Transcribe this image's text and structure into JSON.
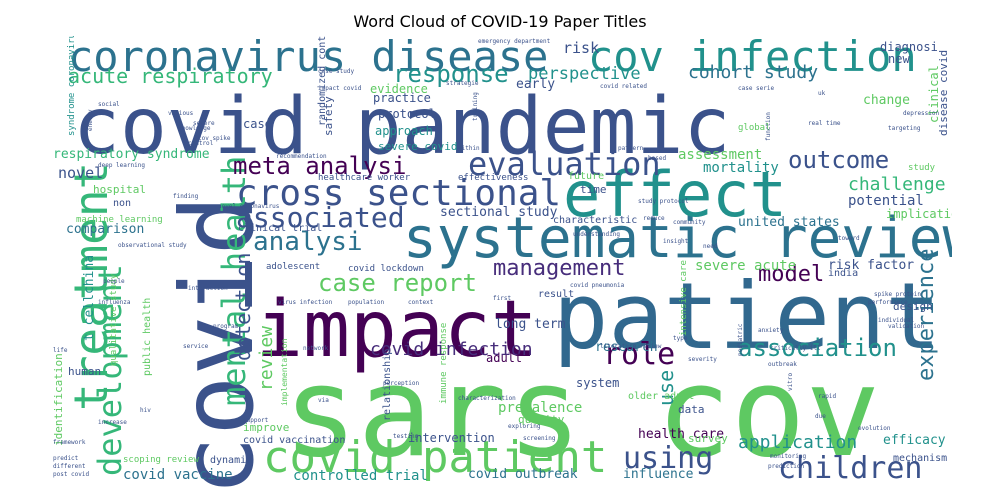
{
  "title": "Word Cloud of COVID-19 Paper Titles",
  "palette": {
    "c1": "#3b528b",
    "c2": "#21918c",
    "c3": "#5ec962",
    "c4": "#440154",
    "c5": "#2c728e",
    "c6": "#35b779",
    "c7": "#472d7b",
    "c8": "#28ae80",
    "c9": "#90d743"
  },
  "words": [
    {
      "text": "covid pandemic",
      "color": "#3b528b"
    },
    {
      "text": "sars cov",
      "color": "#5ec962"
    },
    {
      "text": "patient",
      "color": "#31688e"
    },
    {
      "text": "impact",
      "color": "#440154"
    },
    {
      "text": "covid",
      "color": "#3b528b"
    },
    {
      "text": "systematic review",
      "color": "#2c728e"
    },
    {
      "text": "effect",
      "color": "#21918c"
    },
    {
      "text": "coronavirus disease",
      "color": "#2c728e"
    },
    {
      "text": "cov infection",
      "color": "#21918c"
    },
    {
      "text": "covid patient",
      "color": "#5ec962"
    },
    {
      "text": "treatment",
      "color": "#35b779"
    },
    {
      "text": "cross sectional",
      "color": "#3b528b"
    },
    {
      "text": "mental health",
      "color": "#35b779"
    },
    {
      "text": "evaluation",
      "color": "#3b528b"
    },
    {
      "text": "meta analysi",
      "color": "#440154"
    },
    {
      "text": "associated",
      "color": "#3b528b"
    },
    {
      "text": "development",
      "color": "#35b779"
    },
    {
      "text": "analysi",
      "color": "#2c728e"
    },
    {
      "text": "case report",
      "color": "#5ec962"
    },
    {
      "text": "children",
      "color": "#3b528b"
    },
    {
      "text": "using",
      "color": "#3b528b"
    },
    {
      "text": "role",
      "color": "#440154"
    },
    {
      "text": "association",
      "color": "#21918c"
    },
    {
      "text": "management",
      "color": "#472d7b"
    },
    {
      "text": "outcome",
      "color": "#3b528b"
    },
    {
      "text": "experience",
      "color": "#2c728e"
    },
    {
      "text": "response",
      "color": "#21918c"
    },
    {
      "text": "acute respiratory",
      "color": "#35b779"
    },
    {
      "text": "detection",
      "color": "#3b528b"
    },
    {
      "text": "covid infection",
      "color": "#472d7b"
    },
    {
      "text": "model",
      "color": "#440154"
    },
    {
      "text": "challenge",
      "color": "#35b779"
    },
    {
      "text": "cohort study",
      "color": "#2c728e"
    },
    {
      "text": "application",
      "color": "#21918c"
    },
    {
      "text": "review",
      "color": "#5ec962"
    },
    {
      "text": "perspective",
      "color": "#21918c"
    },
    {
      "text": "use",
      "color": "#21918c"
    },
    {
      "text": "covid vaccine",
      "color": "#2c728e"
    },
    {
      "text": "novel",
      "color": "#3b528b"
    },
    {
      "text": "risk",
      "color": "#3b528b"
    },
    {
      "text": "early",
      "color": "#3b528b"
    },
    {
      "text": "controlled trial",
      "color": "#21918c"
    },
    {
      "text": "covid outbreak",
      "color": "#2c728e"
    },
    {
      "text": "influence",
      "color": "#2c728e"
    },
    {
      "text": "health care",
      "color": "#440154"
    },
    {
      "text": "efficacy",
      "color": "#21918c"
    },
    {
      "text": "comparison",
      "color": "#2c728e"
    },
    {
      "text": "respiratory syndrome",
      "color": "#35b779"
    },
    {
      "text": "sectional study",
      "color": "#3b528b"
    },
    {
      "text": "united states",
      "color": "#2c728e"
    },
    {
      "text": "potential",
      "color": "#3b528b"
    },
    {
      "text": "mortality",
      "color": "#21918c"
    },
    {
      "text": "assessment",
      "color": "#5ec962"
    },
    {
      "text": "implication",
      "color": "#5ec962"
    },
    {
      "text": "risk factor",
      "color": "#3b528b"
    },
    {
      "text": "severe acute",
      "color": "#5ec962"
    },
    {
      "text": "prevalence",
      "color": "#5ec962"
    },
    {
      "text": "research",
      "color": "#2c728e"
    },
    {
      "text": "t cellchina",
      "color": "#21918c"
    },
    {
      "text": "long term",
      "color": "#3b528b"
    },
    {
      "text": "intervention",
      "color": "#3b528b"
    },
    {
      "text": "system",
      "color": "#3b528b"
    },
    {
      "text": "adult",
      "color": "#440154"
    },
    {
      "text": "protocol",
      "color": "#3b528b"
    },
    {
      "text": "practice",
      "color": "#3b528b"
    },
    {
      "text": "approach",
      "color": "#21918c"
    },
    {
      "text": "severe covid",
      "color": "#21918c"
    },
    {
      "text": "case",
      "color": "#3b528b"
    },
    {
      "text": "evidence",
      "color": "#5ec962"
    },
    {
      "text": "safety",
      "color": "#3b528b"
    },
    {
      "text": "change",
      "color": "#5ec962"
    },
    {
      "text": "new",
      "color": "#3b528b"
    },
    {
      "text": "diagnosi",
      "color": "#3b528b"
    },
    {
      "text": "hospital",
      "color": "#5ec962"
    },
    {
      "text": "human",
      "color": "#3b528b"
    },
    {
      "text": "design",
      "color": "#3b528b"
    },
    {
      "text": "mechanism",
      "color": "#3b528b"
    },
    {
      "text": "survey",
      "color": "#5ec962"
    },
    {
      "text": "improve",
      "color": "#5ec962"
    },
    {
      "text": "covid vaccination",
      "color": "#3b528b"
    },
    {
      "text": "dynamic",
      "color": "#3b528b"
    },
    {
      "text": "time",
      "color": "#3b528b"
    },
    {
      "text": "future",
      "color": "#5ec962"
    },
    {
      "text": "characteristic",
      "color": "#3b528b"
    },
    {
      "text": "adolescent",
      "color": "#3b528b"
    },
    {
      "text": "covid lockdown",
      "color": "#3b528b"
    },
    {
      "text": "result",
      "color": "#3b528b"
    },
    {
      "text": "data",
      "color": "#3b528b"
    },
    {
      "text": "older adult",
      "color": "#5ec962"
    },
    {
      "text": "quality",
      "color": "#5ec962"
    },
    {
      "text": "clinical",
      "color": "#5ec962"
    },
    {
      "text": "global",
      "color": "#5ec962"
    },
    {
      "text": "study",
      "color": "#5ec962"
    },
    {
      "text": "identification",
      "color": "#5ec962"
    },
    {
      "text": "non",
      "color": "#3b528b"
    },
    {
      "text": "healthcare worker",
      "color": "#3b528b"
    },
    {
      "text": "effectiveness",
      "color": "#3b528b"
    },
    {
      "text": "clinical trial",
      "color": "#3b528b"
    },
    {
      "text": "india",
      "color": "#3b528b"
    },
    {
      "text": "randomized controlled",
      "color": "#3b528b"
    },
    {
      "text": "disease covid",
      "color": "#3b528b"
    },
    {
      "text": "syndrome coronavirus",
      "color": "#21918c"
    },
    {
      "text": "qualitative study",
      "color": "#5ec962"
    },
    {
      "text": "public health",
      "color": "#5ec962"
    },
    {
      "text": "scoping review",
      "color": "#5ec962"
    },
    {
      "text": "intensive care",
      "color": "#5ec962"
    },
    {
      "text": "relationship",
      "color": "#3b528b"
    },
    {
      "text": "machine learning",
      "color": "#5ec962"
    },
    {
      "text": "implementation",
      "color": "#5ec962"
    },
    {
      "text": "immune response",
      "color": "#5ec962"
    },
    {
      "text": "emergency department",
      "color": "#3b528b"
    },
    {
      "text": "case study",
      "color": "#3b528b"
    },
    {
      "text": "impact covid",
      "color": "#3b528b"
    },
    {
      "text": "strategie",
      "color": "#3b528b"
    },
    {
      "text": "covid related",
      "color": "#3b528b"
    },
    {
      "text": "case serie",
      "color": "#3b528b"
    },
    {
      "text": "social",
      "color": "#3b528b"
    },
    {
      "text": "control",
      "color": "#3b528b"
    },
    {
      "text": "knowledge",
      "color": "#3b528b"
    },
    {
      "text": "severe",
      "color": "#3b528b"
    },
    {
      "text": "various",
      "color": "#3b528b"
    },
    {
      "text": "deep learning",
      "color": "#3b528b"
    },
    {
      "text": "real time",
      "color": "#3b528b"
    },
    {
      "text": "depression",
      "color": "#3b528b"
    },
    {
      "text": "targeting",
      "color": "#3b528b"
    },
    {
      "text": "finding",
      "color": "#3b528b"
    },
    {
      "text": "critically ill",
      "color": "#3b528b"
    },
    {
      "text": "outbreak",
      "color": "#3b528b"
    },
    {
      "text": "covid pneumonia",
      "color": "#3b528b"
    },
    {
      "text": "interaction",
      "color": "#3b528b"
    },
    {
      "text": "virus infection",
      "color": "#3b528b"
    },
    {
      "text": "population",
      "color": "#3b528b"
    },
    {
      "text": "context",
      "color": "#3b528b"
    },
    {
      "text": "literature review",
      "color": "#3b528b"
    },
    {
      "text": "severity",
      "color": "#3b528b"
    },
    {
      "text": "anxiety",
      "color": "#3b528b"
    },
    {
      "text": "rapid",
      "color": "#3b528b"
    },
    {
      "text": "evolution",
      "color": "#3b528b"
    },
    {
      "text": "prediction",
      "color": "#3b528b"
    },
    {
      "text": "monitoring",
      "color": "#3b528b"
    },
    {
      "text": "screening",
      "color": "#3b528b"
    },
    {
      "text": "exploring",
      "color": "#3b528b"
    },
    {
      "text": "perception",
      "color": "#3b528b"
    },
    {
      "text": "characterization",
      "color": "#3b528b"
    },
    {
      "text": "framework",
      "color": "#3b528b"
    },
    {
      "text": "predict",
      "color": "#3b528b"
    },
    {
      "text": "post covid",
      "color": "#3b528b"
    },
    {
      "text": "different",
      "color": "#3b528b"
    },
    {
      "text": "life",
      "color": "#3b528b"
    },
    {
      "text": "increase",
      "color": "#3b528b"
    },
    {
      "text": "program",
      "color": "#3b528b"
    },
    {
      "text": "service",
      "color": "#3b528b"
    },
    {
      "text": "individual",
      "color": "#3b528b"
    },
    {
      "text": "validation",
      "color": "#3b528b"
    },
    {
      "text": "spike protein",
      "color": "#3b528b"
    },
    {
      "text": "performance",
      "color": "#3b528b"
    },
    {
      "text": "insight",
      "color": "#3b528b"
    },
    {
      "text": "need",
      "color": "#3b528b"
    },
    {
      "text": "community",
      "color": "#3b528b"
    },
    {
      "text": "reduce",
      "color": "#3b528b"
    },
    {
      "text": "toward",
      "color": "#3b528b"
    },
    {
      "text": "people",
      "color": "#3b528b"
    },
    {
      "text": "influenza",
      "color": "#3b528b"
    },
    {
      "text": "hiv",
      "color": "#3b528b"
    },
    {
      "text": "network",
      "color": "#3b528b"
    },
    {
      "text": "first",
      "color": "#3b528b"
    },
    {
      "text": "via",
      "color": "#3b528b"
    },
    {
      "text": "support",
      "color": "#3b528b"
    },
    {
      "text": "type",
      "color": "#3b528b"
    },
    {
      "text": "due",
      "color": "#3b528b"
    },
    {
      "text": "vitro",
      "color": "#3b528b"
    },
    {
      "text": "pediatric",
      "color": "#3b528b"
    },
    {
      "text": "testing",
      "color": "#3b528b"
    },
    {
      "text": "within",
      "color": "#3b528b"
    },
    {
      "text": "based",
      "color": "#3b528b"
    },
    {
      "text": "function",
      "color": "#3b528b"
    },
    {
      "text": "uk",
      "color": "#3b528b"
    },
    {
      "text": "training",
      "color": "#3b528b"
    },
    {
      "text": "pattern",
      "color": "#3b528b"
    },
    {
      "text": "observational study",
      "color": "#3b528b"
    },
    {
      "text": "novel coronavirus",
      "color": "#3b528b"
    },
    {
      "text": "recommendation",
      "color": "#3b528b"
    },
    {
      "text": "energy",
      "color": "#3b528b"
    },
    {
      "text": "understanding",
      "color": "#3b528b"
    },
    {
      "text": "study protocol",
      "color": "#3b528b"
    },
    {
      "text": "cov spike",
      "color": "#3b528b"
    }
  ]
}
